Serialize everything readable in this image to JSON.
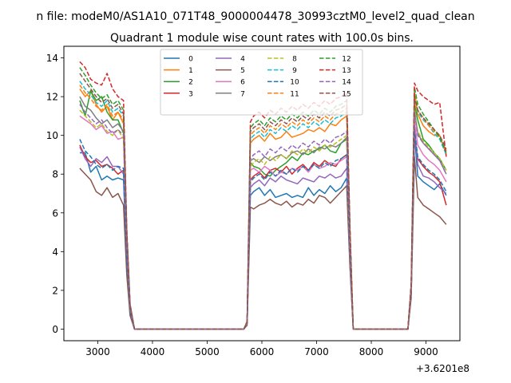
{
  "chart_data": {
    "type": "line",
    "suptitle": "n file: modeM0/AS1A10_071T48_9000004478_30993cztM0_level2_quad_clean",
    "title": "Quadrant 1 module wise count rates with 100.0s bins.",
    "xlabel": "",
    "ylabel": "",
    "x_offset_text": "+3.6201e8",
    "xlim": [
      2380,
      9620
    ],
    "ylim": [
      -0.6,
      14.6
    ],
    "xticks": [
      "3000",
      "4000",
      "5000",
      "6000",
      "7000",
      "8000",
      "9000"
    ],
    "yticks": [
      "0",
      "2",
      "4",
      "6",
      "8",
      "10",
      "12",
      "14"
    ],
    "legend_position": "top-center",
    "legend_columns": 4,
    "grid": false,
    "x": [
      2670,
      2770,
      2870,
      2970,
      3070,
      3170,
      3270,
      3370,
      3470,
      3530,
      3590,
      3670,
      3770,
      5670,
      5730,
      5790,
      5850,
      5950,
      6050,
      6150,
      6250,
      6350,
      6450,
      6550,
      6650,
      6750,
      6850,
      6950,
      7050,
      7150,
      7250,
      7350,
      7450,
      7550,
      7610,
      7670,
      7770,
      8670,
      8730,
      8790,
      8850,
      8950,
      9050,
      9150,
      9250,
      9370
    ],
    "series": [
      {
        "name": "0",
        "color": "#1f77b4",
        "dashed": false,
        "values": [
          9.1,
          9.1,
          8.1,
          8.4,
          7.7,
          7.9,
          7.7,
          7.8,
          7.7,
          3.5,
          0.8,
          0.0,
          0.0,
          0.0,
          0.3,
          6.9,
          7.1,
          7.3,
          6.9,
          7.2,
          6.8,
          6.9,
          7.0,
          6.8,
          6.9,
          6.8,
          7.3,
          6.9,
          7.2,
          7.0,
          7.4,
          7.1,
          7.3,
          7.8,
          3.4,
          0.0,
          0.0,
          0.0,
          1.8,
          10.1,
          7.9,
          7.6,
          7.4,
          7.2,
          7.5,
          6.9
        ]
      },
      {
        "name": "1",
        "color": "#ff7f0e",
        "dashed": false,
        "values": [
          12.4,
          12.0,
          12.3,
          11.6,
          11.2,
          11.5,
          10.8,
          11.2,
          10.6,
          4.8,
          1.2,
          0.0,
          0.0,
          0.0,
          0.3,
          9.6,
          9.8,
          10.0,
          9.7,
          10.1,
          9.8,
          9.9,
          10.2,
          9.9,
          10.0,
          10.1,
          10.3,
          10.2,
          10.4,
          10.2,
          10.6,
          10.5,
          10.8,
          11.0,
          4.8,
          0.0,
          0.0,
          0.0,
          2.1,
          12.0,
          11.1,
          10.5,
          10.2,
          10.0,
          10.0,
          9.0
        ]
      },
      {
        "name": "2",
        "color": "#2ca02c",
        "dashed": false,
        "values": [
          11.8,
          11.0,
          12.3,
          11.8,
          12.0,
          11.2,
          10.8,
          10.8,
          10.1,
          4.5,
          1.1,
          0.0,
          0.0,
          0.0,
          0.3,
          8.6,
          8.4,
          8.3,
          8.0,
          7.9,
          8.2,
          8.4,
          8.6,
          8.9,
          8.7,
          9.1,
          9.0,
          9.2,
          9.3,
          9.5,
          9.2,
          9.1,
          9.6,
          9.8,
          4.3,
          0.0,
          0.0,
          0.0,
          2.0,
          11.6,
          10.8,
          9.8,
          9.5,
          9.1,
          8.8,
          8.2
        ]
      },
      {
        "name": "3",
        "color": "#d62728",
        "dashed": false,
        "values": [
          9.5,
          8.9,
          8.6,
          8.7,
          8.4,
          8.5,
          8.3,
          8.0,
          8.2,
          3.6,
          0.9,
          0.0,
          0.0,
          0.0,
          0.3,
          7.7,
          7.9,
          8.1,
          7.8,
          8.2,
          8.3,
          8.1,
          8.4,
          8.0,
          8.3,
          8.5,
          8.2,
          8.6,
          8.4,
          8.7,
          8.5,
          8.4,
          8.8,
          9.0,
          4.0,
          0.0,
          0.0,
          0.0,
          1.9,
          10.0,
          8.8,
          8.4,
          8.1,
          7.9,
          7.6,
          6.4
        ]
      },
      {
        "name": "4",
        "color": "#9467bd",
        "dashed": false,
        "values": [
          9.4,
          8.8,
          8.4,
          8.8,
          8.6,
          8.9,
          8.4,
          8.4,
          8.0,
          3.5,
          0.8,
          0.0,
          0.0,
          0.0,
          0.3,
          7.3,
          7.5,
          7.7,
          7.4,
          7.8,
          7.6,
          7.9,
          7.7,
          7.6,
          7.5,
          7.8,
          7.7,
          7.6,
          7.9,
          7.8,
          8.0,
          7.8,
          7.9,
          8.3,
          3.6,
          0.0,
          0.0,
          0.0,
          1.8,
          10.4,
          8.5,
          7.9,
          7.8,
          7.6,
          7.3,
          7.0
        ]
      },
      {
        "name": "5",
        "color": "#8c564b",
        "dashed": false,
        "values": [
          8.3,
          8.0,
          7.7,
          7.1,
          6.9,
          7.3,
          6.8,
          7.0,
          6.4,
          2.8,
          0.7,
          0.0,
          0.0,
          0.0,
          0.2,
          6.3,
          6.2,
          6.4,
          6.5,
          6.7,
          6.5,
          6.4,
          6.6,
          6.3,
          6.5,
          6.4,
          6.7,
          6.5,
          6.9,
          6.8,
          6.5,
          6.8,
          7.1,
          7.4,
          3.2,
          0.0,
          0.0,
          0.0,
          1.6,
          8.9,
          6.8,
          6.4,
          6.2,
          6.0,
          5.8,
          5.4
        ]
      },
      {
        "name": "6",
        "color": "#e377c2",
        "dashed": false,
        "values": [
          11.0,
          10.8,
          10.6,
          10.3,
          10.5,
          10.1,
          10.2,
          9.8,
          9.9,
          4.4,
          1.1,
          0.0,
          0.0,
          0.0,
          0.3,
          8.2,
          8.3,
          8.1,
          8.4,
          8.2,
          7.9,
          8.1,
          8.0,
          8.3,
          8.2,
          8.4,
          8.1,
          8.5,
          8.3,
          8.4,
          8.6,
          8.5,
          8.7,
          8.9,
          3.9,
          0.0,
          0.0,
          0.0,
          1.9,
          10.7,
          9.5,
          9.0,
          8.7,
          8.5,
          8.2,
          7.6
        ]
      },
      {
        "name": "7",
        "color": "#7f7f7f",
        "dashed": false,
        "values": [
          12.0,
          11.5,
          11.3,
          10.9,
          10.6,
          10.8,
          10.4,
          10.6,
          10.2,
          4.5,
          1.1,
          0.0,
          0.0,
          0.0,
          0.3,
          8.7,
          8.8,
          8.6,
          8.9,
          8.7,
          8.9,
          9.0,
          8.8,
          9.1,
          9.2,
          9.0,
          9.3,
          9.1,
          9.4,
          9.3,
          9.5,
          9.4,
          9.6,
          9.9,
          4.4,
          0.0,
          0.0,
          0.0,
          2.0,
          11.3,
          10.1,
          9.6,
          9.3,
          9.0,
          8.7,
          8.0
        ]
      },
      {
        "name": "8",
        "color": "#bcbd22",
        "dashed": true,
        "values": [
          11.3,
          11.0,
          10.7,
          10.4,
          10.6,
          10.2,
          10.0,
          10.3,
          9.8,
          4.3,
          1.0,
          0.0,
          0.0,
          0.0,
          0.3,
          8.4,
          8.6,
          8.8,
          8.5,
          8.9,
          8.7,
          9.0,
          8.8,
          9.2,
          9.0,
          9.3,
          9.1,
          9.4,
          9.2,
          9.5,
          9.4,
          9.6,
          9.8,
          10.0,
          4.4,
          0.0,
          0.0,
          0.0,
          2.0,
          11.4,
          10.2,
          9.7,
          9.4,
          9.1,
          8.8,
          8.2
        ]
      },
      {
        "name": "9",
        "color": "#17becf",
        "dashed": true,
        "values": [
          12.8,
          12.4,
          12.1,
          11.7,
          11.5,
          11.8,
          11.2,
          11.4,
          11.0,
          4.9,
          1.2,
          0.0,
          0.0,
          0.0,
          0.3,
          9.8,
          10.0,
          10.2,
          9.9,
          10.3,
          10.1,
          10.4,
          10.2,
          10.5,
          10.3,
          10.6,
          10.4,
          10.7,
          10.5,
          10.8,
          10.6,
          10.9,
          11.0,
          11.2,
          4.9,
          0.0,
          0.0,
          0.0,
          2.2,
          12.3,
          11.2,
          10.8,
          10.5,
          10.1,
          9.8,
          9.0
        ]
      },
      {
        "name": "10",
        "color": "#1f77b4",
        "dashed": true,
        "values": [
          9.8,
          9.2,
          8.9,
          8.5,
          8.3,
          8.5,
          8.2,
          8.4,
          8.3,
          3.6,
          0.9,
          0.0,
          0.0,
          0.0,
          0.3,
          7.6,
          7.8,
          8.0,
          7.7,
          8.1,
          7.9,
          8.2,
          8.0,
          8.3,
          8.1,
          8.4,
          8.2,
          8.5,
          8.3,
          8.6,
          8.4,
          8.7,
          8.8,
          9.0,
          4.0,
          0.0,
          0.0,
          0.0,
          1.9,
          10.3,
          8.9,
          8.5,
          8.2,
          8.0,
          7.7,
          7.1
        ]
      },
      {
        "name": "11",
        "color": "#ff7f0e",
        "dashed": true,
        "values": [
          12.6,
          12.2,
          11.9,
          11.5,
          11.3,
          11.6,
          11.0,
          11.2,
          10.8,
          4.8,
          1.2,
          0.0,
          0.0,
          0.0,
          0.3,
          10.0,
          10.2,
          10.4,
          10.1,
          10.5,
          10.3,
          10.6,
          10.4,
          10.7,
          10.5,
          10.8,
          10.6,
          10.9,
          10.7,
          11.0,
          10.8,
          11.1,
          11.2,
          11.4,
          5.0,
          0.0,
          0.0,
          0.0,
          2.2,
          12.2,
          11.3,
          10.9,
          10.5,
          10.2,
          9.9,
          9.2
        ]
      },
      {
        "name": "12",
        "color": "#2ca02c",
        "dashed": true,
        "values": [
          13.5,
          13.1,
          12.6,
          12.2,
          11.9,
          12.1,
          11.6,
          11.8,
          11.3,
          5.0,
          1.3,
          0.0,
          0.0,
          0.0,
          0.4,
          10.4,
          10.6,
          10.8,
          10.5,
          10.9,
          10.7,
          11.0,
          10.8,
          11.1,
          10.9,
          11.2,
          11.0,
          11.3,
          11.1,
          11.4,
          11.2,
          11.5,
          11.6,
          11.8,
          5.2,
          0.0,
          0.0,
          0.0,
          2.3,
          12.5,
          11.6,
          11.1,
          10.7,
          10.3,
          9.9,
          9.1
        ]
      },
      {
        "name": "13",
        "color": "#d62728",
        "dashed": true,
        "values": [
          13.8,
          13.5,
          12.9,
          12.7,
          12.6,
          13.2,
          12.4,
          12.0,
          11.8,
          5.2,
          1.3,
          0.0,
          0.0,
          0.0,
          0.4,
          10.7,
          11.0,
          11.2,
          10.9,
          11.3,
          11.1,
          11.4,
          11.2,
          11.5,
          11.3,
          11.6,
          11.4,
          11.7,
          11.5,
          11.8,
          11.6,
          11.9,
          12.0,
          12.2,
          5.3,
          0.0,
          0.0,
          0.0,
          2.4,
          12.7,
          12.3,
          12.0,
          11.8,
          11.6,
          11.7,
          8.9
        ]
      },
      {
        "name": "14",
        "color": "#9467bd",
        "dashed": true,
        "values": [
          11.6,
          11.2,
          10.9,
          10.6,
          10.8,
          10.4,
          10.1,
          10.3,
          10.0,
          4.4,
          1.1,
          0.0,
          0.0,
          0.0,
          0.3,
          8.8,
          9.0,
          9.2,
          8.9,
          9.3,
          9.1,
          9.4,
          9.2,
          9.5,
          9.3,
          9.6,
          9.4,
          9.7,
          9.5,
          9.8,
          9.6,
          9.9,
          10.0,
          10.2,
          4.5,
          0.0,
          0.0,
          0.0,
          2.0,
          11.2,
          10.0,
          9.6,
          9.3,
          9.0,
          8.7,
          8.0
        ]
      },
      {
        "name": "15",
        "color": "#8c564b",
        "dashed": true,
        "values": [
          13.2,
          12.8,
          12.4,
          12.0,
          11.7,
          11.9,
          11.4,
          11.6,
          11.1,
          4.9,
          1.2,
          0.0,
          0.0,
          0.0,
          0.3,
          10.2,
          10.4,
          10.6,
          10.3,
          10.7,
          10.5,
          10.8,
          10.6,
          10.9,
          10.7,
          11.0,
          10.8,
          11.1,
          10.9,
          11.2,
          11.0,
          11.3,
          11.4,
          11.6,
          5.1,
          0.0,
          0.0,
          0.0,
          2.2,
          12.0,
          11.3,
          10.9,
          10.6,
          10.3,
          10.0,
          9.3
        ]
      }
    ]
  }
}
